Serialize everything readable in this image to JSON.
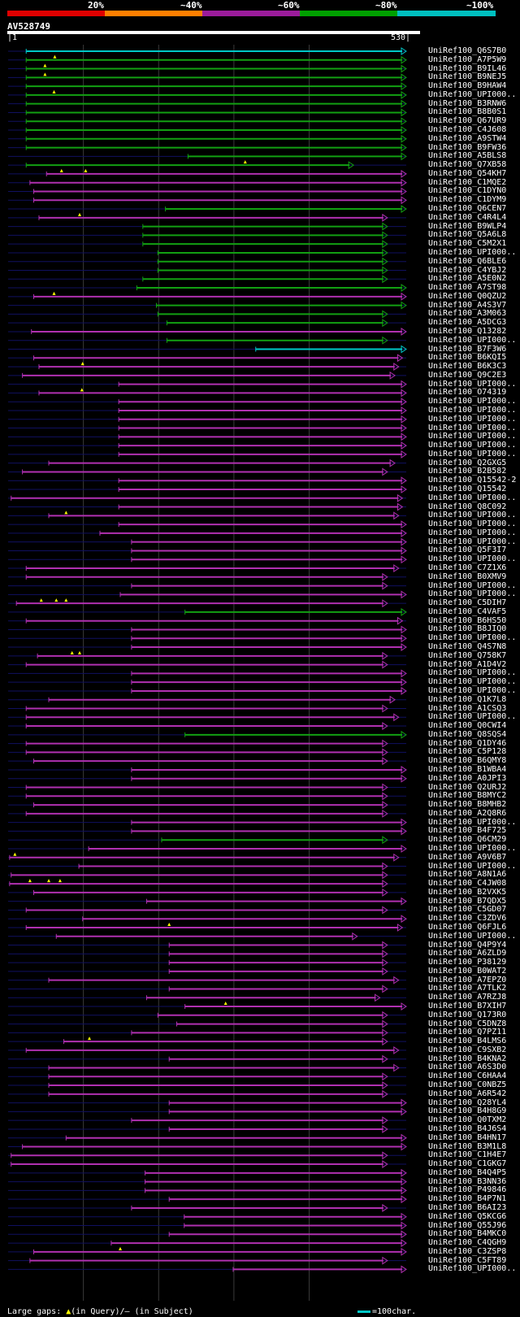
{
  "colors": {
    "scale": [
      "#e00000",
      "#ff7f00",
      "#9b1c9b",
      "#00a000",
      "#00c0c0"
    ],
    "line": "#b030b0",
    "green": "#12a012",
    "cyan": "#00c8c8",
    "gap": "#101060",
    "grid": "#3a3a3a",
    "marker": "#ffff00"
  },
  "scale_labels": [
    "20%",
    "~40%",
    "~60%",
    "~80%",
    "~100%"
  ],
  "query": {
    "id": "AV528749",
    "start": "|1",
    "end": "530|",
    "length": 530
  },
  "footer": {
    "text_a": "Large gaps: ",
    "marker": "▲",
    "text_b": "(in Query)/— (in Subject)",
    "legend": "=100char."
  },
  "hits": [
    {
      "n": "UniRef100_Q6S7B0",
      "c": "cyan",
      "s": 25,
      "e": 530,
      "m": []
    },
    {
      "n": "UniRef100_A7P5W9",
      "c": "green",
      "s": 25,
      "e": 530,
      "m": [
        63
      ]
    },
    {
      "n": "UniRef100_B9IL46",
      "c": "green",
      "s": 25,
      "e": 530,
      "m": [
        50
      ]
    },
    {
      "n": "UniRef100_B9NEJ5",
      "c": "green",
      "s": 25,
      "e": 530,
      "m": [
        50
      ]
    },
    {
      "n": "UniRef100_B9HAW4",
      "c": "green",
      "s": 25,
      "e": 530,
      "m": []
    },
    {
      "n": "UniRef100_UPI000..",
      "c": "green",
      "s": 25,
      "e": 530,
      "m": [
        62
      ]
    },
    {
      "n": "UniRef100_B3RNW6",
      "c": "green",
      "s": 25,
      "e": 530,
      "m": []
    },
    {
      "n": "UniRef100_B8B0S1",
      "c": "green",
      "s": 25,
      "e": 530,
      "m": []
    },
    {
      "n": "UniRef100_Q67UR9",
      "c": "green",
      "s": 25,
      "e": 530,
      "m": []
    },
    {
      "n": "UniRef100_C4J608",
      "c": "green",
      "s": 25,
      "e": 530,
      "m": []
    },
    {
      "n": "UniRef100_A9STW4",
      "c": "green",
      "s": 25,
      "e": 530,
      "m": []
    },
    {
      "n": "UniRef100_B9FW36",
      "c": "green",
      "s": 25,
      "e": 530,
      "m": []
    },
    {
      "n": "UniRef100_A5BLS8",
      "c": "green",
      "s": 240,
      "e": 530,
      "m": []
    },
    {
      "n": "UniRef100_Q7XB58",
      "c": "green",
      "s": 25,
      "e": 460,
      "m": [
        316
      ]
    },
    {
      "n": "UniRef100_Q54KH7",
      "c": "purple",
      "s": 52,
      "e": 530,
      "m": [
        72,
        104
      ]
    },
    {
      "n": "UniRef100_C1MQE2",
      "c": "purple",
      "s": 30,
      "e": 530,
      "m": []
    },
    {
      "n": "UniRef100_C1DYN0",
      "c": "purple",
      "s": 35,
      "e": 530,
      "m": []
    },
    {
      "n": "UniRef100_C1DYM9",
      "c": "purple",
      "s": 35,
      "e": 530,
      "m": []
    },
    {
      "n": "UniRef100_Q6CEN7",
      "c": "green",
      "s": 210,
      "e": 530,
      "m": []
    },
    {
      "n": "UniRef100_C4R4L4",
      "c": "purple",
      "s": 42,
      "e": 505,
      "m": [
        96
      ]
    },
    {
      "n": "UniRef100_B9WLP4",
      "c": "green",
      "s": 180,
      "e": 505,
      "m": []
    },
    {
      "n": "UniRef100_Q5A6L8",
      "c": "green",
      "s": 180,
      "e": 505,
      "m": []
    },
    {
      "n": "UniRef100_C5M2X1",
      "c": "green",
      "s": 180,
      "e": 505,
      "m": []
    },
    {
      "n": "UniRef100_UPI000..",
      "c": "green",
      "s": 200,
      "e": 505,
      "m": []
    },
    {
      "n": "UniRef100_Q6BLE6",
      "c": "green",
      "s": 200,
      "e": 505,
      "m": []
    },
    {
      "n": "UniRef100_C4YBJ2",
      "c": "green",
      "s": 200,
      "e": 505,
      "m": []
    },
    {
      "n": "UniRef100_A5E0N2",
      "c": "green",
      "s": 180,
      "e": 505,
      "m": []
    },
    {
      "n": "UniRef100_A7ST98",
      "c": "green",
      "s": 172,
      "e": 530,
      "m": []
    },
    {
      "n": "UniRef100_Q0QZU2",
      "c": "purple",
      "s": 35,
      "e": 530,
      "m": [
        62
      ]
    },
    {
      "n": "UniRef100_A4S3V7",
      "c": "green",
      "s": 198,
      "e": 530,
      "m": []
    },
    {
      "n": "UniRef100_A3M063",
      "c": "green",
      "s": 200,
      "e": 505,
      "m": []
    },
    {
      "n": "UniRef100_A5DCG3",
      "c": "green",
      "s": 212,
      "e": 505,
      "m": []
    },
    {
      "n": "UniRef100_Q13282",
      "c": "purple",
      "s": 32,
      "e": 530,
      "m": []
    },
    {
      "n": "UniRef100_UPI000..",
      "c": "green",
      "s": 212,
      "e": 505,
      "m": []
    },
    {
      "n": "UniRef100_B7F3W6",
      "c": "cyan",
      "s": 330,
      "e": 530,
      "m": []
    },
    {
      "n": "UniRef100_B6KQI5",
      "c": "purple",
      "s": 35,
      "e": 525,
      "m": []
    },
    {
      "n": "UniRef100_B6K3C3",
      "c": "purple",
      "s": 42,
      "e": 520,
      "m": [
        100
      ]
    },
    {
      "n": "UniRef100_Q9C2E3",
      "c": "purple",
      "s": 20,
      "e": 515,
      "m": []
    },
    {
      "n": "UniRef100_UPI000..",
      "c": "purple",
      "s": 148,
      "e": 530,
      "m": []
    },
    {
      "n": "UniRef100_O74319",
      "c": "purple",
      "s": 42,
      "e": 530,
      "m": [
        99
      ]
    },
    {
      "n": "UniRef100_UPI000..",
      "c": "purple",
      "s": 148,
      "e": 530,
      "m": []
    },
    {
      "n": "UniRef100_UPI000..",
      "c": "purple",
      "s": 148,
      "e": 530,
      "m": []
    },
    {
      "n": "UniRef100_UPI000..",
      "c": "purple",
      "s": 148,
      "e": 530,
      "m": []
    },
    {
      "n": "UniRef100_UPI000..",
      "c": "purple",
      "s": 148,
      "e": 530,
      "m": []
    },
    {
      "n": "UniRef100_UPI000..",
      "c": "purple",
      "s": 148,
      "e": 530,
      "m": []
    },
    {
      "n": "UniRef100_UPI000..",
      "c": "purple",
      "s": 148,
      "e": 530,
      "m": []
    },
    {
      "n": "UniRef100_UPI000..",
      "c": "purple",
      "s": 148,
      "e": 530,
      "m": []
    },
    {
      "n": "UniRef100_Q2GXG5",
      "c": "purple",
      "s": 55,
      "e": 515,
      "m": []
    },
    {
      "n": "UniRef100_B2B582",
      "c": "purple",
      "s": 20,
      "e": 505,
      "m": []
    },
    {
      "n": "UniRef100_Q15542-2",
      "c": "purple",
      "s": 148,
      "e": 530,
      "m": []
    },
    {
      "n": "UniRef100_Q15542",
      "c": "purple",
      "s": 148,
      "e": 530,
      "m": []
    },
    {
      "n": "UniRef100_UPI000..",
      "c": "purple",
      "s": 5,
      "e": 525,
      "m": []
    },
    {
      "n": "UniRef100_Q8C092",
      "c": "purple",
      "s": 148,
      "e": 525,
      "m": []
    },
    {
      "n": "UniRef100_UPI000..",
      "c": "purple",
      "s": 55,
      "e": 520,
      "m": [
        78
      ]
    },
    {
      "n": "UniRef100_UPI000..",
      "c": "purple",
      "s": 148,
      "e": 530,
      "m": []
    },
    {
      "n": "UniRef100_UPI000..",
      "c": "purple",
      "s": 123,
      "e": 530,
      "m": []
    },
    {
      "n": "UniRef100_UPI000..",
      "c": "purple",
      "s": 165,
      "e": 530,
      "m": []
    },
    {
      "n": "UniRef100_Q5F3I7",
      "c": "purple",
      "s": 165,
      "e": 530,
      "m": []
    },
    {
      "n": "UniRef100_UPI000..",
      "c": "purple",
      "s": 165,
      "e": 530,
      "m": []
    },
    {
      "n": "UniRef100_C7Z1X6",
      "c": "purple",
      "s": 25,
      "e": 520,
      "m": []
    },
    {
      "n": "UniRef100_B0XMV9",
      "c": "purple",
      "s": 25,
      "e": 505,
      "m": []
    },
    {
      "n": "UniRef100_UPI000..",
      "c": "purple",
      "s": 165,
      "e": 505,
      "m": []
    },
    {
      "n": "UniRef100_UPI000..",
      "c": "purple",
      "s": 150,
      "e": 530,
      "m": []
    },
    {
      "n": "UniRef100_C5DIH7",
      "c": "purple",
      "s": 12,
      "e": 505,
      "m": [
        45,
        65,
        78
      ]
    },
    {
      "n": "UniRef100_C4VAF5",
      "c": "green",
      "s": 236,
      "e": 530,
      "m": []
    },
    {
      "n": "UniRef100_B6HS50",
      "c": "purple",
      "s": 25,
      "e": 525,
      "m": []
    },
    {
      "n": "UniRef100_B8JIQ0",
      "c": "purple",
      "s": 165,
      "e": 530,
      "m": []
    },
    {
      "n": "UniRef100_UPI000..",
      "c": "purple",
      "s": 165,
      "e": 530,
      "m": []
    },
    {
      "n": "UniRef100_Q4S7N8",
      "c": "purple",
      "s": 165,
      "e": 530,
      "m": []
    },
    {
      "n": "UniRef100_Q758K7",
      "c": "purple",
      "s": 40,
      "e": 505,
      "m": [
        86,
        96
      ]
    },
    {
      "n": "UniRef100_A1D4V2",
      "c": "purple",
      "s": 25,
      "e": 505,
      "m": []
    },
    {
      "n": "UniRef100_UPI000..",
      "c": "purple",
      "s": 165,
      "e": 530,
      "m": []
    },
    {
      "n": "UniRef100_UPI000..",
      "c": "purple",
      "s": 165,
      "e": 530,
      "m": []
    },
    {
      "n": "UniRef100_UPI000..",
      "c": "purple",
      "s": 165,
      "e": 530,
      "m": []
    },
    {
      "n": "UniRef100_Q1K7L8",
      "c": "purple",
      "s": 55,
      "e": 515,
      "m": []
    },
    {
      "n": "UniRef100_A1CSQ3",
      "c": "purple",
      "s": 25,
      "e": 505,
      "m": []
    },
    {
      "n": "UniRef100_UPI000..",
      "c": "purple",
      "s": 25,
      "e": 520,
      "m": []
    },
    {
      "n": "UniRef100_Q0CWI4",
      "c": "purple",
      "s": 25,
      "e": 505,
      "m": []
    },
    {
      "n": "UniRef100_Q8SQS4",
      "c": "green",
      "s": 236,
      "e": 530,
      "m": []
    },
    {
      "n": "UniRef100_Q1DY46",
      "c": "purple",
      "s": 25,
      "e": 505,
      "m": []
    },
    {
      "n": "UniRef100_C5P128",
      "c": "purple",
      "s": 25,
      "e": 505,
      "m": []
    },
    {
      "n": "UniRef100_B6QMY8",
      "c": "purple",
      "s": 35,
      "e": 505,
      "m": []
    },
    {
      "n": "UniRef100_B1WBA4",
      "c": "purple",
      "s": 165,
      "e": 530,
      "m": []
    },
    {
      "n": "UniRef100_A0JPI3",
      "c": "purple",
      "s": 165,
      "e": 530,
      "m": []
    },
    {
      "n": "UniRef100_Q2URJ2",
      "c": "purple",
      "s": 25,
      "e": 505,
      "m": []
    },
    {
      "n": "UniRef100_B8MYC2",
      "c": "purple",
      "s": 25,
      "e": 505,
      "m": []
    },
    {
      "n": "UniRef100_B8MHB2",
      "c": "purple",
      "s": 35,
      "e": 505,
      "m": []
    },
    {
      "n": "UniRef100_A2Q8R6",
      "c": "purple",
      "s": 25,
      "e": 505,
      "m": []
    },
    {
      "n": "UniRef100_UPI000..",
      "c": "purple",
      "s": 165,
      "e": 530,
      "m": []
    },
    {
      "n": "UniRef100_B4F725",
      "c": "purple",
      "s": 165,
      "e": 530,
      "m": []
    },
    {
      "n": "UniRef100_Q6CM29",
      "c": "green",
      "s": 205,
      "e": 505,
      "m": []
    },
    {
      "n": "UniRef100_UPI000..",
      "c": "purple",
      "s": 108,
      "e": 530,
      "m": []
    },
    {
      "n": "UniRef100_A9V6B7",
      "c": "purple",
      "s": 3,
      "e": 520,
      "m": [
        10
      ]
    },
    {
      "n": "UniRef100_UPI000..",
      "c": "purple",
      "s": 95,
      "e": 505,
      "m": []
    },
    {
      "n": "UniRef100_A8N1A6",
      "c": "purple",
      "s": 5,
      "e": 505,
      "m": []
    },
    {
      "n": "UniRef100_C4JW08",
      "c": "purple",
      "s": 3,
      "e": 505,
      "m": [
        30,
        55,
        70
      ]
    },
    {
      "n": "UniRef100_B2VXK5",
      "c": "purple",
      "s": 35,
      "e": 505,
      "m": []
    },
    {
      "n": "UniRef100_B7QDX5",
      "c": "purple",
      "s": 185,
      "e": 530,
      "m": []
    },
    {
      "n": "UniRef100_C5GD07",
      "c": "purple",
      "s": 25,
      "e": 505,
      "m": []
    },
    {
      "n": "UniRef100_C3ZDV6",
      "c": "purple",
      "s": 100,
      "e": 530,
      "m": []
    },
    {
      "n": "UniRef100_Q6FJL6",
      "c": "purple",
      "s": 25,
      "e": 525,
      "m": [
        215
      ]
    },
    {
      "n": "UniRef100_UPI000..",
      "c": "purple",
      "s": 65,
      "e": 465,
      "m": []
    },
    {
      "n": "UniRef100_Q4P9Y4",
      "c": "purple",
      "s": 215,
      "e": 505,
      "m": []
    },
    {
      "n": "UniRef100_A6ZLD9",
      "c": "purple",
      "s": 215,
      "e": 505,
      "m": []
    },
    {
      "n": "UniRef100_P38129",
      "c": "purple",
      "s": 215,
      "e": 505,
      "m": []
    },
    {
      "n": "UniRef100_B0WAT2",
      "c": "purple",
      "s": 215,
      "e": 505,
      "m": []
    },
    {
      "n": "UniRef100_A7EPZ0",
      "c": "purple",
      "s": 55,
      "e": 520,
      "m": []
    },
    {
      "n": "UniRef100_A7TLK2",
      "c": "purple",
      "s": 215,
      "e": 505,
      "m": []
    },
    {
      "n": "UniRef100_A7RZJ8",
      "c": "purple",
      "s": 185,
      "e": 495,
      "m": []
    },
    {
      "n": "UniRef100_B7XIH7",
      "c": "purple",
      "s": 236,
      "e": 530,
      "m": [
        290
      ]
    },
    {
      "n": "UniRef100_Q173R0",
      "c": "purple",
      "s": 200,
      "e": 505,
      "m": []
    },
    {
      "n": "UniRef100_C5DNZ8",
      "c": "purple",
      "s": 225,
      "e": 505,
      "m": []
    },
    {
      "n": "UniRef100_Q7PZ11",
      "c": "purple",
      "s": 165,
      "e": 505,
      "m": []
    },
    {
      "n": "UniRef100_B4LMS6",
      "c": "purple",
      "s": 75,
      "e": 505,
      "m": [
        109
      ]
    },
    {
      "n": "UniRef100_C9SXB2",
      "c": "purple",
      "s": 25,
      "e": 520,
      "m": []
    },
    {
      "n": "UniRef100_B4KNA2",
      "c": "purple",
      "s": 215,
      "e": 505,
      "m": []
    },
    {
      "n": "UniRef100_A6S3D0",
      "c": "purple",
      "s": 55,
      "e": 520,
      "m": []
    },
    {
      "n": "UniRef100_C6HAA4",
      "c": "purple",
      "s": 55,
      "e": 505,
      "m": []
    },
    {
      "n": "UniRef100_C0NBZ5",
      "c": "purple",
      "s": 55,
      "e": 505,
      "m": []
    },
    {
      "n": "UniRef100_A6R542",
      "c": "purple",
      "s": 55,
      "e": 505,
      "m": []
    },
    {
      "n": "UniRef100_Q28YL4",
      "c": "purple",
      "s": 215,
      "e": 530,
      "m": []
    },
    {
      "n": "UniRef100_B4H8G9",
      "c": "purple",
      "s": 215,
      "e": 530,
      "m": []
    },
    {
      "n": "UniRef100_Q0TXM2",
      "c": "purple",
      "s": 165,
      "e": 505,
      "m": []
    },
    {
      "n": "UniRef100_B4J6S4",
      "c": "purple",
      "s": 215,
      "e": 505,
      "m": []
    },
    {
      "n": "UniRef100_B4HN17",
      "c": "purple",
      "s": 78,
      "e": 530,
      "m": []
    },
    {
      "n": "UniRef100_B3M1L8",
      "c": "purple",
      "s": 20,
      "e": 530,
      "m": []
    },
    {
      "n": "UniRef100_C1H4E7",
      "c": "purple",
      "s": 5,
      "e": 505,
      "m": []
    },
    {
      "n": "UniRef100_C1GKG7",
      "c": "purple",
      "s": 5,
      "e": 505,
      "m": []
    },
    {
      "n": "UniRef100_B4Q4P5",
      "c": "purple",
      "s": 183,
      "e": 530,
      "m": []
    },
    {
      "n": "UniRef100_B3NN36",
      "c": "purple",
      "s": 183,
      "e": 530,
      "m": []
    },
    {
      "n": "UniRef100_P49846",
      "c": "purple",
      "s": 183,
      "e": 530,
      "m": []
    },
    {
      "n": "UniRef100_B4P7N1",
      "c": "purple",
      "s": 215,
      "e": 530,
      "m": []
    },
    {
      "n": "UniRef100_B6AI23",
      "c": "purple",
      "s": 165,
      "e": 505,
      "m": []
    },
    {
      "n": "UniRef100_Q5KCG6",
      "c": "purple",
      "s": 235,
      "e": 530,
      "m": []
    },
    {
      "n": "UniRef100_Q55J96",
      "c": "purple",
      "s": 235,
      "e": 530,
      "m": []
    },
    {
      "n": "UniRef100_B4MKC0",
      "c": "purple",
      "s": 215,
      "e": 530,
      "m": []
    },
    {
      "n": "UniRef100_C4QGH9",
      "c": "purple",
      "s": 138,
      "e": 530,
      "m": []
    },
    {
      "n": "UniRef100_C3ZSP8",
      "c": "purple",
      "s": 35,
      "e": 530,
      "m": [
        150
      ]
    },
    {
      "n": "UniRef100_C5FT89",
      "c": "purple",
      "s": 30,
      "e": 505,
      "m": []
    },
    {
      "n": "UniRef100_UPI000..",
      "c": "purple",
      "s": 300,
      "e": 530,
      "m": []
    }
  ]
}
